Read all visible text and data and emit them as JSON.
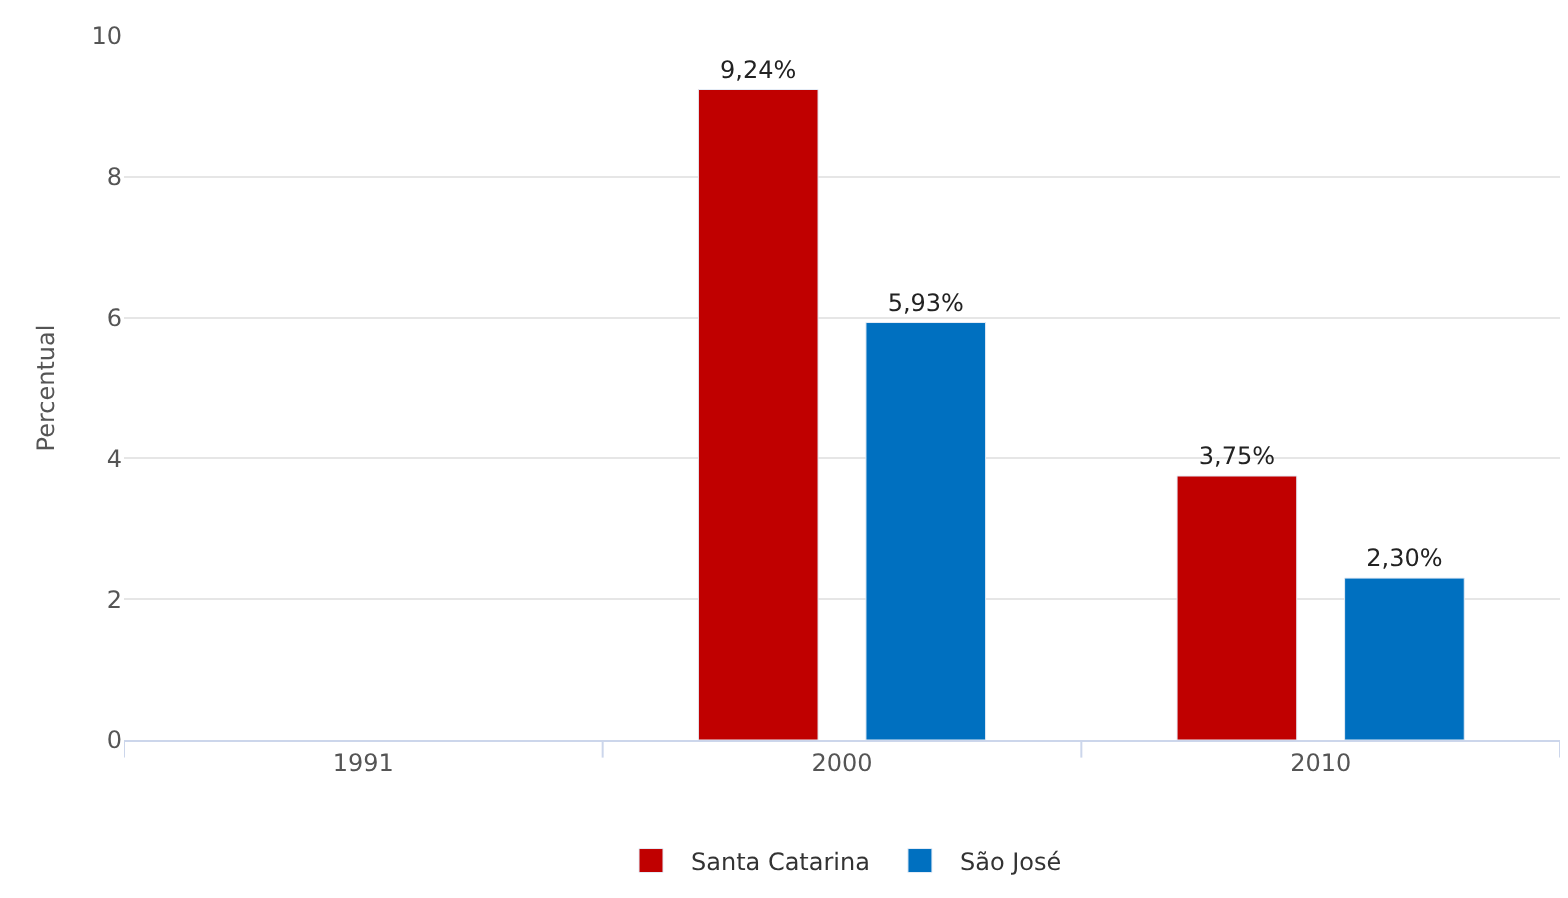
{
  "chart_data": {
    "type": "bar",
    "ylabel": "Percentual",
    "categories": [
      "1991",
      "2000",
      "2010"
    ],
    "series": [
      {
        "name": "Santa Catarina",
        "color": "#c00000",
        "values": [
          null,
          9.24,
          3.75
        ],
        "value_labels": [
          null,
          "9,24%",
          "3,75%"
        ]
      },
      {
        "name": "São José",
        "color": "#0070c0",
        "values": [
          null,
          5.93,
          2.3
        ],
        "value_labels": [
          null,
          "5,93%",
          "2,30%"
        ]
      }
    ],
    "ylim": [
      0,
      10
    ],
    "yticks": [
      0,
      2,
      4,
      6,
      8,
      10
    ],
    "grid": "y",
    "legend": "bottom"
  }
}
